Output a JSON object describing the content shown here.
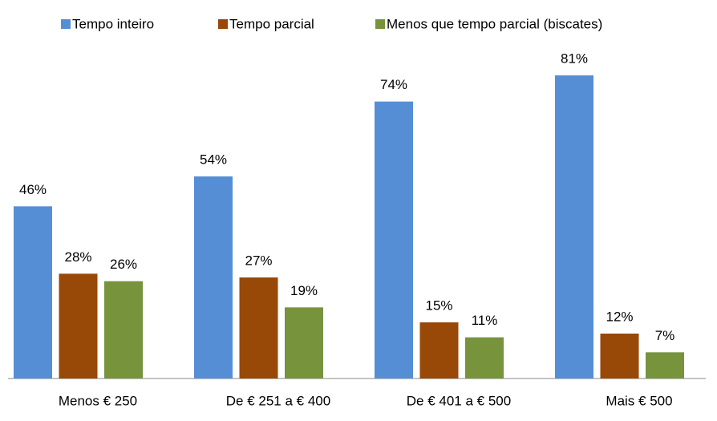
{
  "chart_data": {
    "type": "bar",
    "categories": [
      "Menos € 250",
      "De € 251 a € 400",
      "De € 401 a € 500",
      "Mais € 500"
    ],
    "series": [
      {
        "name": "Tempo inteiro",
        "color": "#558ed5",
        "values": [
          46,
          54,
          74,
          81
        ],
        "value_labels": [
          "46%",
          "54%",
          "74%",
          "81%"
        ]
      },
      {
        "name": "Tempo parcial",
        "color": "#984807",
        "values": [
          28,
          27,
          15,
          12
        ],
        "value_labels": [
          "28%",
          "27%",
          "15%",
          "12%"
        ]
      },
      {
        "name": "Menos que tempo parcial (biscates)",
        "color": "#77933c",
        "values": [
          26,
          19,
          11,
          7
        ],
        "value_labels": [
          "26%",
          "19%",
          "11%",
          "7%"
        ]
      }
    ],
    "legend": "top"
  }
}
